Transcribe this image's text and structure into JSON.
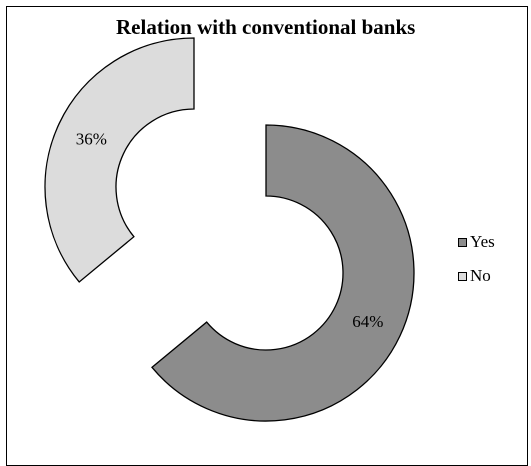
{
  "chart_data": {
    "type": "pie",
    "subtype": "exploded-doughnut",
    "title": "Relation with conventional banks",
    "slices": [
      {
        "label": "Yes",
        "value": 64,
        "data_label": "64%",
        "color": "#8c8c8c"
      },
      {
        "label": "No",
        "value": 36,
        "data_label": "36%",
        "color": "#dcdcdc"
      }
    ],
    "legend_position": "right",
    "start_angle_deg": 0,
    "direction": "clockwise"
  }
}
